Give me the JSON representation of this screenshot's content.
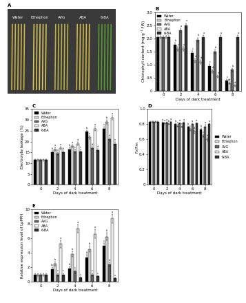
{
  "chart_data": [
    {
      "type": "image",
      "title": "A",
      "categories": [
        "Water",
        "Ethephon",
        "AVG",
        "ABA",
        "6-BA"
      ]
    },
    {
      "type": "bar",
      "title": "B",
      "x_label": "Days of dark treatment",
      "y_label": "Chlorophyll content (mg g⁻¹ FW)",
      "categories": [
        "0",
        "2",
        "4",
        "6",
        "8"
      ],
      "ylim": [
        0,
        3.0
      ],
      "yticks": [
        0,
        0.5,
        1.0,
        1.5,
        2.0,
        2.5,
        3.0
      ],
      "legend": "upper left",
      "series": [
        {
          "name": "Water",
          "color": "#000000",
          "values": [
            2.05,
            1.75,
            1.45,
            0.95,
            0.4
          ],
          "errors": [
            0.05,
            0.08,
            0.08,
            0.07,
            0.05
          ],
          "letters": [
            null,
            "b",
            "c",
            "c",
            "c"
          ]
        },
        {
          "name": "Ethephon",
          "color": "#d0d0d0",
          "values": [
            2.05,
            1.6,
            1.15,
            0.75,
            0.3
          ],
          "errors": [
            0.05,
            0.08,
            0.07,
            0.06,
            0.05
          ],
          "letters": [
            null,
            "c",
            "d",
            "d",
            "cd"
          ]
        },
        {
          "name": "AVG",
          "color": "#606060",
          "values": [
            2.05,
            2.3,
            1.95,
            1.5,
            0.8
          ],
          "errors": [
            0.05,
            0.08,
            0.08,
            0.08,
            0.06
          ],
          "letters": [
            null,
            "a",
            "b",
            "b",
            "b"
          ]
        },
        {
          "name": "ABA",
          "color": "#f0f0f0",
          "values": [
            2.05,
            1.6,
            1.1,
            0.55,
            0.2
          ],
          "errors": [
            0.05,
            0.07,
            0.07,
            0.06,
            0.04
          ],
          "letters": [
            null,
            "c",
            "d",
            "e",
            "d"
          ]
        },
        {
          "name": "6-BA",
          "color": "#303030",
          "values": [
            2.05,
            2.5,
            2.05,
            2.05,
            2.05
          ],
          "errors": [
            0.05,
            0.08,
            0.08,
            0.08,
            0.08
          ],
          "letters": [
            null,
            "a",
            "a",
            "a",
            "a"
          ]
        }
      ]
    },
    {
      "type": "bar",
      "title": "C",
      "x_label": "Days of dark treatment",
      "y_label": "Electrolyte leakage (%)",
      "categories": [
        "0",
        "2",
        "4",
        "6",
        "8"
      ],
      "ylim": [
        0,
        35
      ],
      "yticks": [
        0,
        5,
        10,
        15,
        20,
        25,
        30,
        35
      ],
      "legend": "upper left",
      "series": [
        {
          "name": "Water",
          "color": "#000000",
          "values": [
            11.5,
            15,
            16.5,
            24.5,
            26
          ],
          "errors": [
            0.5,
            0.7,
            0.7,
            0.8,
            0.8
          ],
          "letters": [
            null,
            "b",
            "b",
            "b",
            "c"
          ]
        },
        {
          "name": "Ethephon",
          "color": "#d0d0d0",
          "values": [
            11.5,
            16.5,
            18,
            22,
            29
          ],
          "errors": [
            0.5,
            0.7,
            0.7,
            0.8,
            0.9
          ],
          "letters": [
            null,
            "a",
            "a",
            "c",
            "b"
          ]
        },
        {
          "name": "AVG",
          "color": "#606060",
          "values": [
            11.5,
            14.5,
            15.5,
            17,
            21
          ],
          "errors": [
            0.5,
            0.6,
            0.7,
            0.7,
            0.8
          ],
          "letters": [
            null,
            "c",
            "c",
            "d",
            "d"
          ]
        },
        {
          "name": "ABA",
          "color": "#f0f0f0",
          "values": [
            11.5,
            17,
            19,
            26,
            31
          ],
          "errors": [
            0.5,
            0.7,
            0.8,
            0.9,
            0.9
          ],
          "letters": [
            null,
            "a",
            "a",
            "a",
            "a"
          ]
        },
        {
          "name": "6-BA",
          "color": "#303030",
          "values": [
            11.5,
            15,
            15.5,
            16,
            19
          ],
          "errors": [
            0.5,
            0.6,
            0.7,
            0.7,
            0.8
          ],
          "letters": [
            null,
            "b",
            "c",
            "d",
            "e"
          ]
        }
      ]
    },
    {
      "type": "bar",
      "title": "D",
      "x_label": "Days of dark treatment",
      "y_label": "Fv/Fm",
      "categories": [
        "0",
        "2",
        "4",
        "6",
        "8"
      ],
      "ylim": [
        0,
        1.0
      ],
      "yticks": [
        0,
        0.2,
        0.4,
        0.6,
        0.8,
        1.0
      ],
      "legend": "right",
      "series": [
        {
          "name": "Water",
          "color": "#000000",
          "values": [
            0.83,
            0.82,
            0.8,
            0.77,
            0.73
          ],
          "errors": [
            0.01,
            0.01,
            0.01,
            0.01,
            0.02
          ],
          "letters": [
            null,
            "a",
            "b",
            "b",
            "b"
          ]
        },
        {
          "name": "Ethephon",
          "color": "#d0d0d0",
          "values": [
            0.83,
            0.81,
            0.78,
            0.73,
            0.65
          ],
          "errors": [
            0.01,
            0.01,
            0.01,
            0.02,
            0.02
          ],
          "letters": [
            null,
            "a",
            "c",
            "c",
            "c"
          ]
        },
        {
          "name": "AVG",
          "color": "#606060",
          "values": [
            0.83,
            0.82,
            0.81,
            0.8,
            0.77
          ],
          "errors": [
            0.01,
            0.01,
            0.01,
            0.01,
            0.02
          ],
          "letters": [
            null,
            "a",
            "a",
            "a",
            "a"
          ]
        },
        {
          "name": "ABA",
          "color": "#f0f0f0",
          "values": [
            0.83,
            0.8,
            0.77,
            0.7,
            0.6
          ],
          "errors": [
            0.01,
            0.01,
            0.01,
            0.02,
            0.02
          ],
          "letters": [
            null,
            "b",
            "c",
            "d",
            "d"
          ]
        },
        {
          "name": "6-BA",
          "color": "#303030",
          "values": [
            0.83,
            0.83,
            0.82,
            0.81,
            0.8
          ],
          "errors": [
            0.01,
            0.01,
            0.01,
            0.01,
            0.01
          ],
          "letters": [
            null,
            "a",
            "a",
            "a",
            "a"
          ]
        }
      ]
    },
    {
      "type": "bar",
      "title": "E",
      "x_label": "Days of dark treatment",
      "y_label": "Relative expression level of LpPPH",
      "categories": [
        "0",
        "2",
        "4",
        "6",
        "8"
      ],
      "ylim": [
        0,
        10
      ],
      "yticks": [
        0,
        2,
        4,
        6,
        8,
        10
      ],
      "legend": "upper left",
      "series": [
        {
          "name": "Water",
          "color": "#000000",
          "values": [
            1.0,
            1.7,
            1.8,
            3.3,
            4.9
          ],
          "errors": [
            0.2,
            0.3,
            0.3,
            0.4,
            0.4
          ],
          "letters": [
            null,
            "bc",
            "b",
            "b",
            "c"
          ]
        },
        {
          "name": "Ethephon",
          "color": "#d0d0d0",
          "values": [
            1.0,
            2.5,
            3.8,
            4.5,
            6.2
          ],
          "errors": [
            0.2,
            0.3,
            0.4,
            0.4,
            0.5
          ],
          "letters": [
            null,
            "b",
            "b",
            "b",
            "b"
          ]
        },
        {
          "name": "AVG",
          "color": "#606060",
          "values": [
            1.0,
            1.0,
            1.4,
            1.0,
            2.4
          ],
          "errors": [
            0.2,
            0.2,
            0.2,
            0.2,
            0.3
          ],
          "letters": [
            null,
            "c",
            "c",
            "c",
            "d"
          ]
        },
        {
          "name": "ABA",
          "color": "#f0f0f0",
          "values": [
            1.0,
            5.2,
            7.3,
            6.6,
            8.7
          ],
          "errors": [
            0.2,
            0.5,
            0.6,
            0.6,
            0.6
          ],
          "letters": [
            null,
            "a",
            "a",
            "a",
            "a"
          ]
        },
        {
          "name": "6-BA",
          "color": "#303030",
          "values": [
            1.0,
            1.0,
            0.6,
            0.8,
            0.5
          ],
          "errors": [
            0.2,
            0.2,
            0.1,
            0.1,
            0.1
          ],
          "letters": [
            null,
            "c",
            "c",
            "c",
            "e"
          ]
        }
      ]
    }
  ]
}
